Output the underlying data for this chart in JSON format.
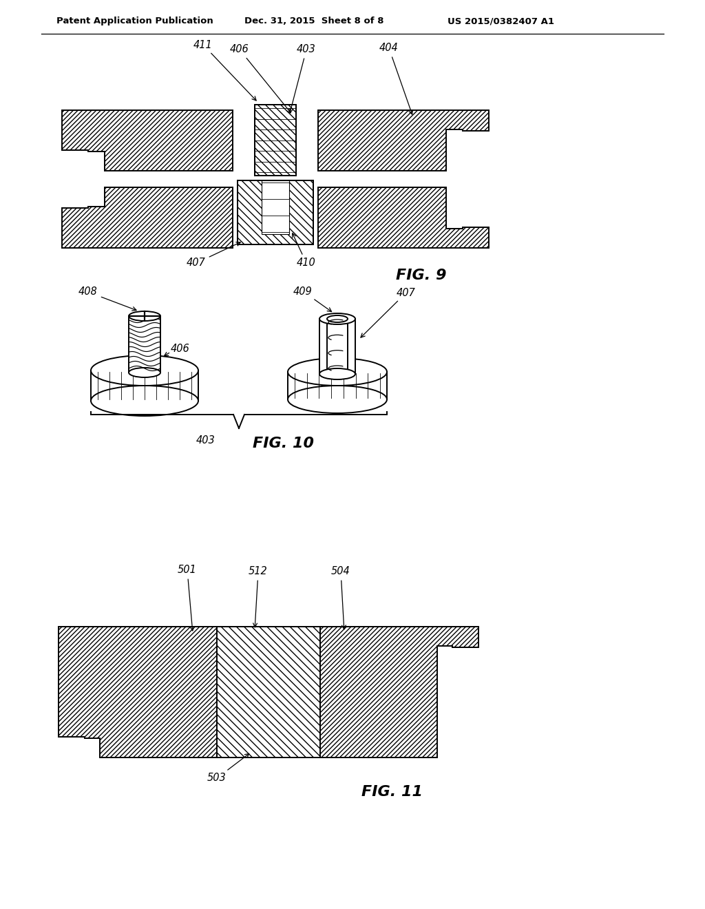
{
  "header_left": "Patent Application Publication",
  "header_center": "Dec. 31, 2015  Sheet 8 of 8",
  "header_right": "US 2015/0382407 A1",
  "fig9_label": "FIG. 9",
  "fig10_label": "FIG. 10",
  "fig11_label": "FIG. 11",
  "bg_color": "#ffffff"
}
